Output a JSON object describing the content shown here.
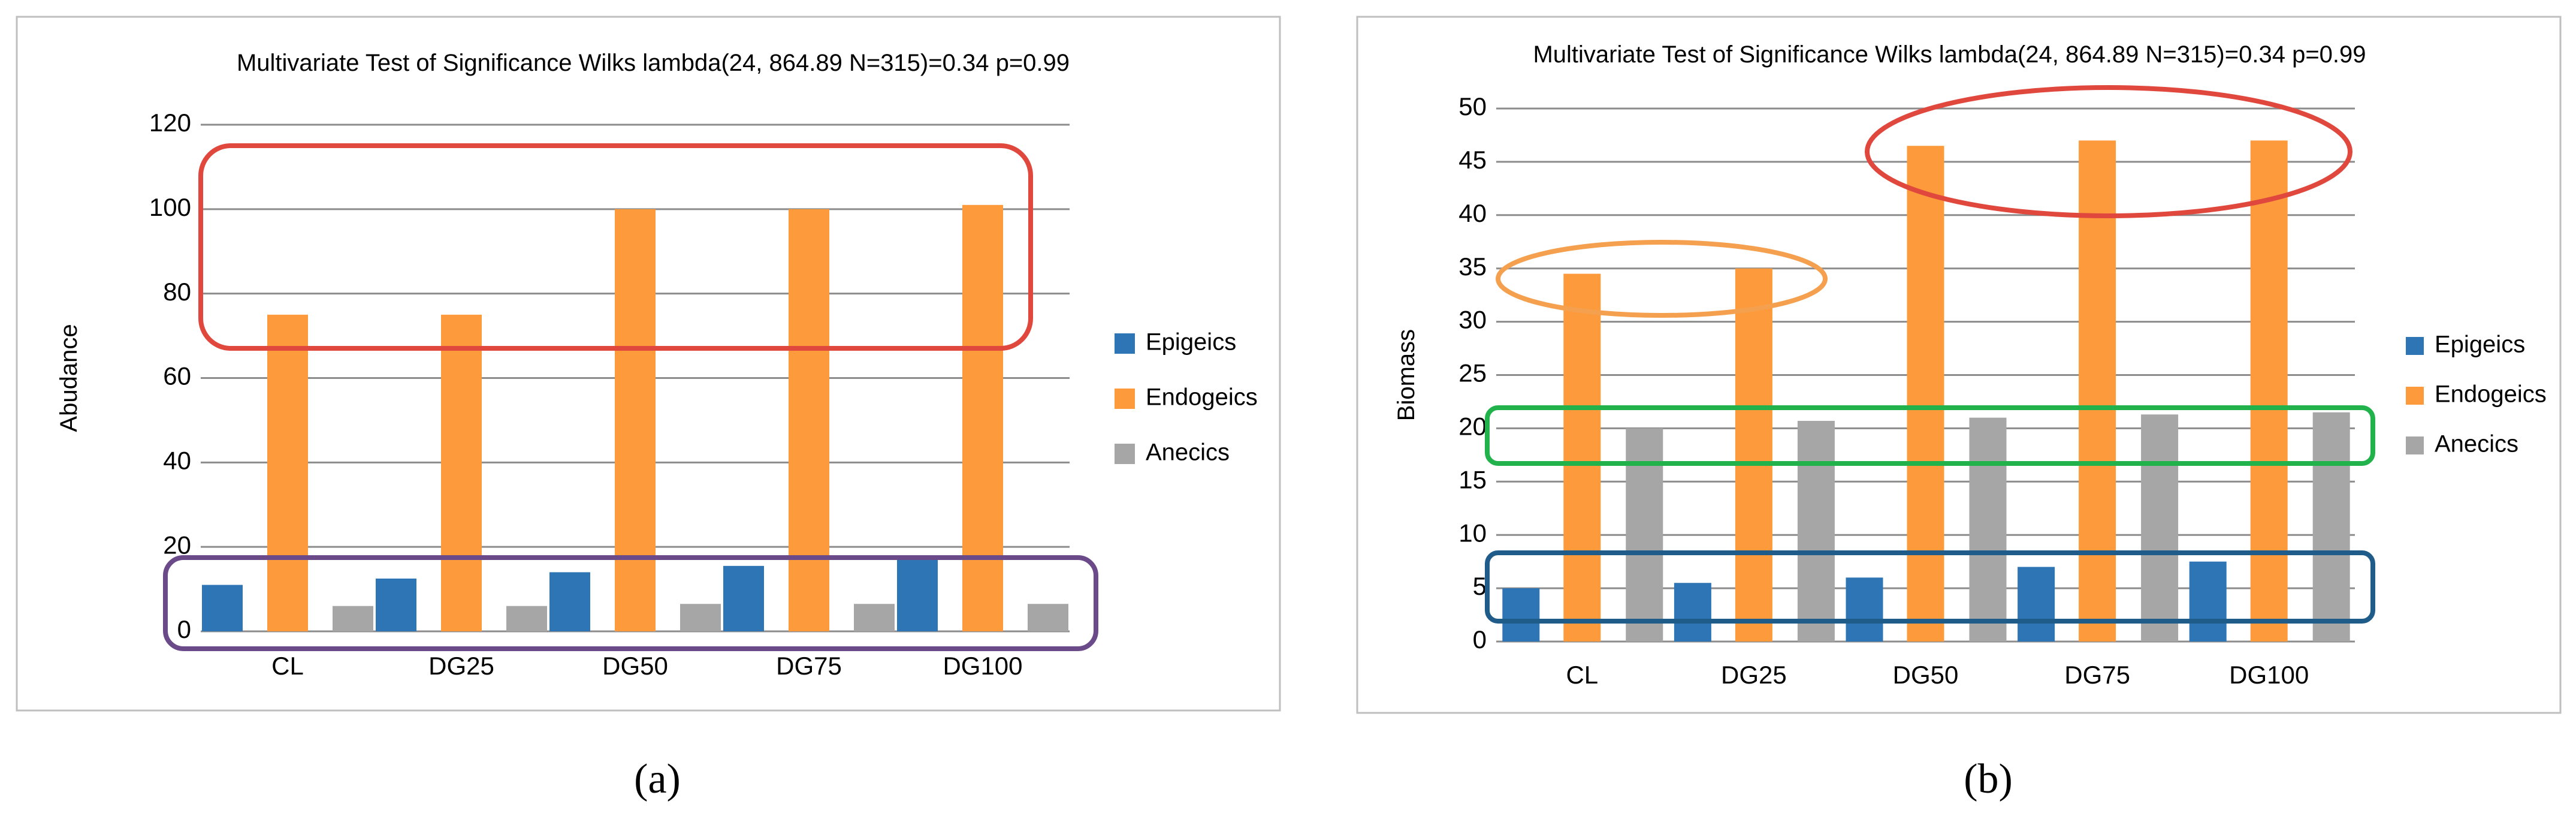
{
  "colors": {
    "Epigeics": "#2e75b6",
    "Endogeics": "#fd9a3c",
    "Anecics": "#a6a6a6"
  },
  "chart_data": [
    {
      "type": "bar",
      "panel_label": "(a)",
      "title": "Multivariate Test of Significance Wilks lambda(24, 864.89 N=315)=0.34 p=0.99",
      "xlabel": "",
      "ylabel": "Abudance",
      "ylim": [
        0,
        120
      ],
      "yticks": [
        "0",
        "20",
        "40",
        "60",
        "80",
        "100",
        "120"
      ],
      "categories": [
        "CL",
        "DG25",
        "DG50",
        "DG75",
        "DG100"
      ],
      "series": [
        {
          "name": "Epigeics",
          "values": [
            11,
            12.5,
            14,
            15.5,
            17.5
          ]
        },
        {
          "name": "Endogeics",
          "values": [
            75,
            75,
            100,
            100,
            101
          ]
        },
        {
          "name": "Anecics",
          "values": [
            6,
            6,
            6.5,
            6.5,
            6.5
          ]
        }
      ],
      "legend": "right",
      "annotations": [
        {
          "type": "rounded-rectangle",
          "color": "#e0483e",
          "encloses": "Endogeics bars"
        },
        {
          "type": "rounded-rectangle",
          "color": "#6b4a8a",
          "encloses": "Epigeics and Anecics bars"
        }
      ]
    },
    {
      "type": "bar",
      "panel_label": "(b)",
      "title": "Multivariate Test of Significance Wilks lambda(24, 864.89 N=315)=0.34 p=0.99",
      "xlabel": "",
      "ylabel": "Biomass",
      "ylim": [
        0,
        50
      ],
      "yticks": [
        "0",
        "5",
        "10",
        "15",
        "20",
        "25",
        "30",
        "35",
        "40",
        "45",
        "50"
      ],
      "categories": [
        "CL",
        "DG25",
        "DG50",
        "DG75",
        "DG100"
      ],
      "series": [
        {
          "name": "Epigeics",
          "values": [
            5,
            5.5,
            6,
            7,
            7.5
          ]
        },
        {
          "name": "Endogeics",
          "values": [
            34.5,
            35,
            46.5,
            47,
            47
          ]
        },
        {
          "name": "Anecics",
          "values": [
            20,
            20.7,
            21,
            21.3,
            21.5
          ]
        }
      ],
      "legend": "right",
      "annotations": [
        {
          "type": "ellipse",
          "color": "#f5a04e",
          "encloses": "Endogeics CL, DG25"
        },
        {
          "type": "ellipse",
          "color": "#e0483e",
          "encloses": "Endogeics DG50, DG75, DG100"
        },
        {
          "type": "rounded-rectangle",
          "color": "#22b24c",
          "encloses": "Anecics bar tops"
        },
        {
          "type": "rounded-rectangle",
          "color": "#1f5c8a",
          "encloses": "Epigeics bars"
        }
      ]
    }
  ]
}
